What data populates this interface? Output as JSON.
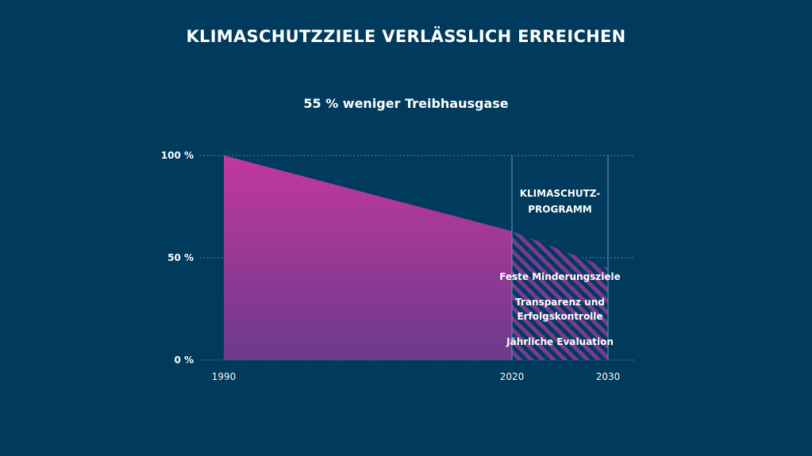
{
  "title": "KLIMASCHUTZZIELE VERLÄSSLICH ERREICHEN",
  "subtitle": "55 % weniger Treibhausgase",
  "colors": {
    "background": "#003a5c",
    "area_top": "#c2389f",
    "area_bottom": "#6b3a8a",
    "stripe": "#7b3a92",
    "grid": "#5f9bbf"
  },
  "chart_data": {
    "type": "area",
    "x": [
      1990,
      2020,
      2030
    ],
    "values": [
      100,
      63,
      45
    ],
    "projected_from": 2020,
    "xlim": [
      1990,
      2030
    ],
    "ylim": [
      0,
      100
    ],
    "x_ticks": [
      "1990",
      "2020",
      "2030"
    ],
    "y_ticks": [
      {
        "value": 0,
        "label": "0 %"
      },
      {
        "value": 50,
        "label": "50 %"
      },
      {
        "value": 100,
        "label": "100 %"
      }
    ],
    "grid": true
  },
  "program_box": {
    "title_lines": [
      "KLIMASCHUTZ-",
      "PROGRAMM"
    ],
    "items": [
      [
        "Feste Minderungsziele"
      ],
      [
        "Transparenz und",
        "Erfolgskontrolle"
      ],
      [
        "Jährliche Evaluation"
      ]
    ]
  }
}
